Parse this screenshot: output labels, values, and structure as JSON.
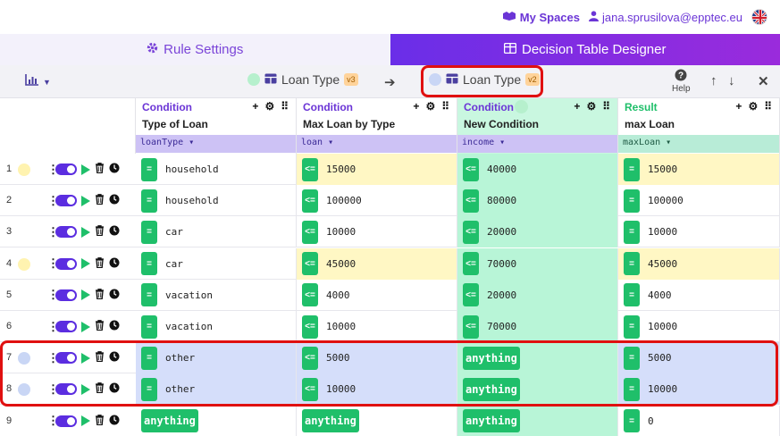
{
  "header": {
    "my_spaces": "My Spaces",
    "user_email": "jana.sprusilova@epptec.eu"
  },
  "tabs": [
    {
      "label": "Rule Settings",
      "icon": "gear-icon",
      "active": false
    },
    {
      "label": "Decision Table Designer",
      "icon": "table-icon",
      "active": true
    }
  ],
  "toolbar": {
    "source": {
      "label": "Loan Type",
      "version": "v3",
      "dot_color": "#b6f0cd"
    },
    "target": {
      "label": "Loan Type",
      "version": "v2",
      "dot_color": "#c9d6f5"
    },
    "help_label": "Help"
  },
  "columns": [
    {
      "kind": "Condition",
      "name": "Type of Loan",
      "variable": "loanType",
      "type": "condition",
      "status_dot": false
    },
    {
      "kind": "Condition",
      "name": "Max Loan by Type",
      "variable": "loan",
      "type": "condition",
      "status_dot": false
    },
    {
      "kind": "Condition",
      "name": "New Condition",
      "variable": "income",
      "type": "condition",
      "status_dot": true
    },
    {
      "kind": "Result",
      "name": "max Loan",
      "variable": "maxLoan",
      "type": "result",
      "status_dot": false
    }
  ],
  "rows": [
    {
      "num": "1",
      "dot": "#fff3b0",
      "bg": "#fff7c4",
      "cells": [
        {
          "op": "=",
          "val": "household"
        },
        {
          "op": "<=",
          "val": "15000"
        },
        {
          "op": "<=",
          "val": "40000"
        },
        {
          "op": "=",
          "val": "15000"
        }
      ]
    },
    {
      "num": "2",
      "dot": "",
      "bg": "",
      "cells": [
        {
          "op": "=",
          "val": "household"
        },
        {
          "op": "<=",
          "val": "100000"
        },
        {
          "op": "<=",
          "val": "80000"
        },
        {
          "op": "=",
          "val": "100000"
        }
      ]
    },
    {
      "num": "3",
      "dot": "",
      "bg": "",
      "cells": [
        {
          "op": "=",
          "val": "car"
        },
        {
          "op": "<=",
          "val": "10000"
        },
        {
          "op": "<=",
          "val": "20000"
        },
        {
          "op": "=",
          "val": "10000"
        }
      ]
    },
    {
      "num": "4",
      "dot": "#fff3b0",
      "bg": "#fff7c4",
      "cells": [
        {
          "op": "=",
          "val": "car"
        },
        {
          "op": "<=",
          "val": "45000"
        },
        {
          "op": "<=",
          "val": "70000"
        },
        {
          "op": "=",
          "val": "45000"
        }
      ]
    },
    {
      "num": "5",
      "dot": "",
      "bg": "",
      "cells": [
        {
          "op": "=",
          "val": "vacation"
        },
        {
          "op": "<=",
          "val": "4000"
        },
        {
          "op": "<=",
          "val": "20000"
        },
        {
          "op": "=",
          "val": "4000"
        }
      ]
    },
    {
      "num": "6",
      "dot": "",
      "bg": "",
      "cells": [
        {
          "op": "=",
          "val": "vacation"
        },
        {
          "op": "<=",
          "val": "10000"
        },
        {
          "op": "<=",
          "val": "70000"
        },
        {
          "op": "=",
          "val": "10000"
        }
      ]
    },
    {
      "num": "7",
      "dot": "#c9d6f5",
      "bg": "#d5defa",
      "cells": [
        {
          "op": "=",
          "val": "other"
        },
        {
          "op": "<=",
          "val": "5000"
        },
        {
          "any": "anything"
        },
        {
          "op": "=",
          "val": "5000"
        }
      ]
    },
    {
      "num": "8",
      "dot": "#c9d6f5",
      "bg": "#d5defa",
      "cells": [
        {
          "op": "=",
          "val": "other"
        },
        {
          "op": "<=",
          "val": "10000"
        },
        {
          "any": "anything"
        },
        {
          "op": "=",
          "val": "10000"
        }
      ]
    },
    {
      "num": "9",
      "dot": "",
      "bg": "",
      "cells": [
        {
          "any": "anything"
        },
        {
          "any": "anything"
        },
        {
          "any": "anything"
        },
        {
          "op": "=",
          "val": "0"
        }
      ]
    }
  ],
  "colors": {
    "accent": "#6b35d6",
    "operator_green": "#1fbf6a",
    "new_column_bg": "#b8f5d7",
    "highlight_red": "#e01010"
  }
}
